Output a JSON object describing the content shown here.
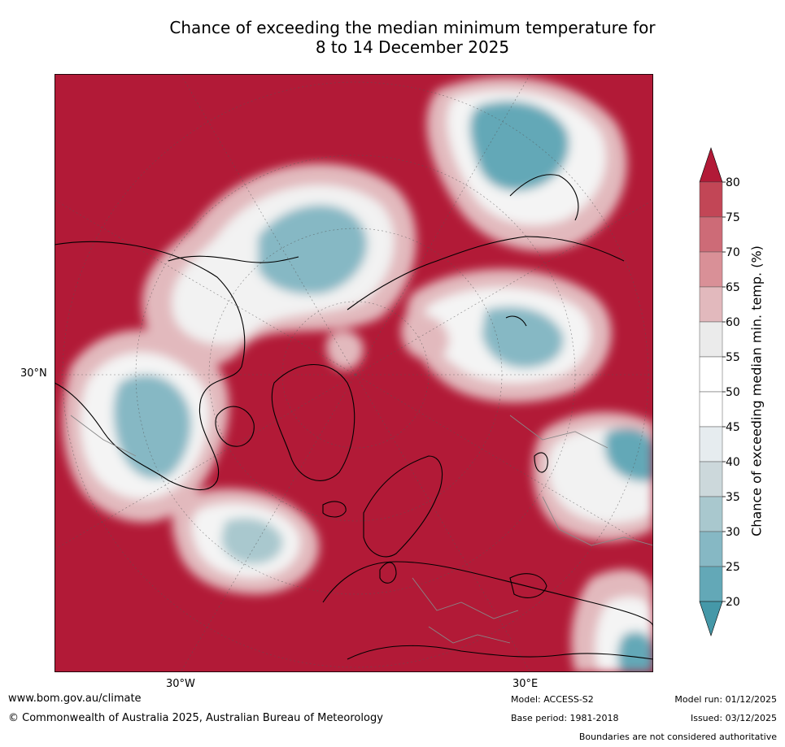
{
  "title_line1": "Chance of exceeding the median minimum temperature for",
  "title_line2": "8 to 14 December 2025",
  "map": {
    "projection": "north polar stereographic",
    "lon_labels": [
      "30°W",
      "30°E"
    ],
    "lat_labels": [
      "30°N"
    ]
  },
  "colorbar": {
    "label": "Chance of exceeding median min. temp. (%)",
    "ticks": [
      "80",
      "75",
      "70",
      "65",
      "60",
      "55",
      "50",
      "45",
      "40",
      "35",
      "30",
      "25",
      "20"
    ],
    "colors": [
      "#b21a37",
      "#c24656",
      "#cd6b77",
      "#d99097",
      "#e2b9bd",
      "#ebebeb",
      "#ffffff",
      "#ffffff",
      "#e6ecef",
      "#ccd8db",
      "#a9c8ce",
      "#86b8c4",
      "#63a8b7",
      "#4598a8"
    ],
    "over_color": "#b21a37",
    "under_color": "#4598a8"
  },
  "footer": {
    "website": "www.bom.gov.au/climate",
    "copyright": "© Commonwealth of Australia 2025, Australian Bureau of Meteorology",
    "model": "Model: ACCESS-S2",
    "base_period": "Base period: 1981-2018",
    "model_run": "Model run: 01/12/2025",
    "issued": "Issued: 03/12/2025",
    "disclaimer": "Boundaries are not considered authoritative"
  }
}
